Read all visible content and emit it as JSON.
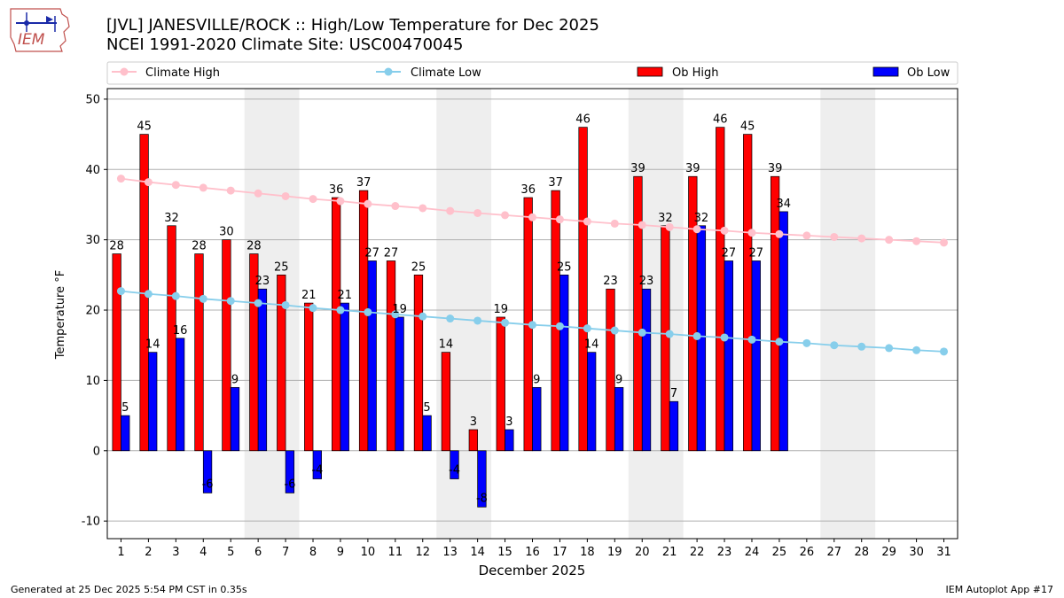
{
  "header": {
    "title_line1": "[JVL] JANESVILLE/ROCK :: High/Low Temperature for Dec 2025",
    "title_line2": "NCEI 1991-2020 Climate Site: USC00470045",
    "logo_text": "IEM"
  },
  "footer": {
    "generated": "Generated at 25 Dec 2025 5:54 PM CST in 0.35s",
    "app": "IEM Autoplot App #17"
  },
  "colors": {
    "climate_high": "#ffc0cb",
    "climate_low": "#87ceeb",
    "ob_high": "#ff0000",
    "ob_low": "#0000ff",
    "weekend_shade": "#eeeeee",
    "grid": "#b0b0b0"
  },
  "chart_data": {
    "type": "bar",
    "title": "[JVL] JANESVILLE/ROCK :: High/Low Temperature for Dec 2025",
    "subtitle": "NCEI 1991-2020 Climate Site: USC00470045",
    "xlabel": "December 2025",
    "ylabel": "Temperature °F",
    "ylim": [
      -12.5,
      51.5
    ],
    "yticks": [
      -10,
      0,
      10,
      20,
      30,
      40,
      50
    ],
    "grid": true,
    "legend": [
      "Climate High",
      "Climate Low",
      "Ob High",
      "Ob Low"
    ],
    "legend_position": "top",
    "days": [
      1,
      2,
      3,
      4,
      5,
      6,
      7,
      8,
      9,
      10,
      11,
      12,
      13,
      14,
      15,
      16,
      17,
      18,
      19,
      20,
      21,
      22,
      23,
      24,
      25,
      26,
      27,
      28,
      29,
      30,
      31
    ],
    "shaded_days": [
      [
        6,
        7
      ],
      [
        13,
        14
      ],
      [
        20,
        21
      ],
      [
        27,
        28
      ]
    ],
    "series": [
      {
        "name": "Ob High",
        "kind": "bar",
        "values": [
          28,
          45,
          32,
          28,
          30,
          28,
          25,
          21,
          36,
          37,
          27,
          25,
          14,
          3,
          19,
          36,
          37,
          46,
          23,
          39,
          32,
          39,
          46,
          45,
          39
        ]
      },
      {
        "name": "Ob Low",
        "kind": "bar",
        "values": [
          5,
          14,
          16,
          -6,
          9,
          23,
          -6,
          -4,
          21,
          27,
          19,
          5,
          -4,
          -8,
          3,
          9,
          25,
          14,
          9,
          23,
          7,
          32,
          27,
          27,
          34
        ]
      },
      {
        "name": "Climate High",
        "kind": "line",
        "values": [
          38.7,
          38.2,
          37.8,
          37.4,
          37.0,
          36.6,
          36.2,
          35.8,
          35.5,
          35.1,
          34.8,
          34.5,
          34.1,
          33.8,
          33.5,
          33.2,
          32.9,
          32.6,
          32.3,
          32.1,
          31.8,
          31.5,
          31.3,
          31.0,
          30.8,
          30.6,
          30.4,
          30.2,
          30.0,
          29.8,
          29.6
        ]
      },
      {
        "name": "Climate Low",
        "kind": "line",
        "values": [
          22.7,
          22.3,
          22.0,
          21.6,
          21.3,
          21.0,
          20.7,
          20.3,
          20.0,
          19.7,
          19.4,
          19.1,
          18.8,
          18.5,
          18.2,
          17.9,
          17.7,
          17.4,
          17.1,
          16.8,
          16.6,
          16.3,
          16.1,
          15.8,
          15.5,
          15.3,
          15.0,
          14.8,
          14.6,
          14.3,
          14.1
        ]
      }
    ]
  }
}
